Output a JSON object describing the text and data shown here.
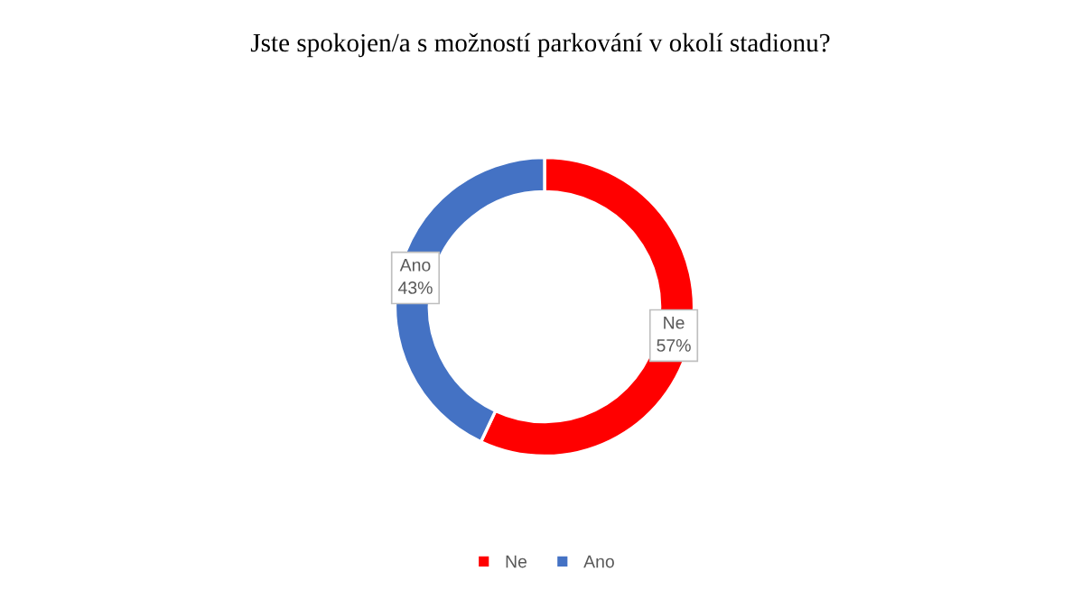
{
  "chart_data": {
    "type": "donut",
    "title": "Jste spokojen/a s možností parkování v okolí stadionu?",
    "categories": [
      "Ne",
      "Ano"
    ],
    "values": [
      57,
      43
    ],
    "colors": [
      "#ff0000",
      "#4472c4"
    ],
    "value_labels": [
      "57%",
      "43%"
    ],
    "legend": "bottom"
  }
}
